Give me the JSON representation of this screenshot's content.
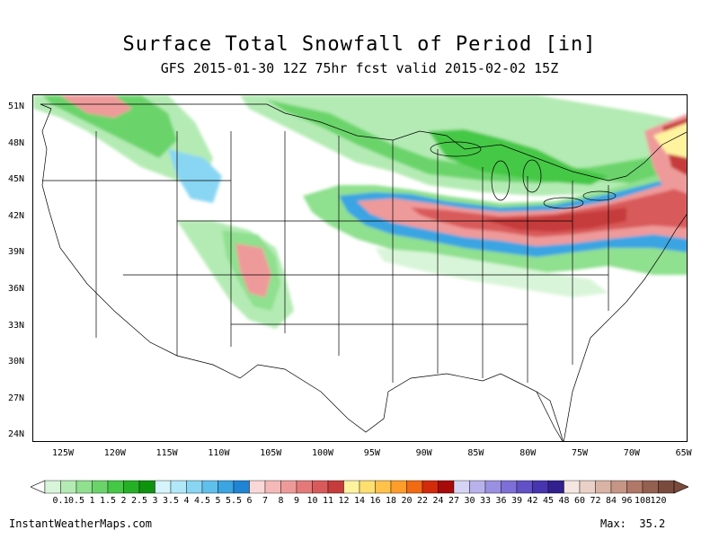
{
  "title": "Surface Total Snowfall of Period [in]",
  "subtitle": "GFS 2015-01-30 12Z 75hr fcst valid 2015-02-02 15Z",
  "lat_ticks": [
    "51N",
    "48N",
    "45N",
    "42N",
    "39N",
    "36N",
    "33N",
    "30N",
    "27N",
    "24N"
  ],
  "lon_ticks": [
    "125W",
    "120W",
    "115W",
    "110W",
    "105W",
    "100W",
    "95W",
    "90W",
    "85W",
    "80W",
    "75W",
    "70W",
    "65W"
  ],
  "colorbar": {
    "labels": [
      "0.1",
      "0.5",
      "1",
      "1.5",
      "2",
      "2.5",
      "3",
      "3.5",
      "4",
      "4.5",
      "5",
      "5.5",
      "6",
      "7",
      "8",
      "9",
      "10",
      "11",
      "12",
      "14",
      "16",
      "18",
      "20",
      "22",
      "24",
      "27",
      "30",
      "33",
      "36",
      "39",
      "42",
      "45",
      "48",
      "60",
      "72",
      "84",
      "96",
      "108",
      "120"
    ],
    "colors": [
      "#d9f5d9",
      "#b4ebb4",
      "#8fe08f",
      "#6ad46a",
      "#45c845",
      "#25b025",
      "#0f930f",
      "#d6f4fb",
      "#b0e8f8",
      "#88d6f3",
      "#5fc0ec",
      "#3ba4e2",
      "#1f84d4",
      "#fbd8d8",
      "#f6b9b9",
      "#ef9a9a",
      "#e57979",
      "#d95a5a",
      "#c63b3b",
      "#fff3a0",
      "#ffdf70",
      "#ffc24a",
      "#ff9d2a",
      "#f26a12",
      "#d42a0c",
      "#a80a0a",
      "#d6d4f4",
      "#b8b2ec",
      "#9a90e2",
      "#7d6fd6",
      "#6150c6",
      "#4735b0",
      "#33208f",
      "#f6e6e1",
      "#ead0c6",
      "#d9b3a5",
      "#c69585",
      "#b07868",
      "#946050",
      "#7a4b3c"
    ]
  },
  "footer": {
    "source": "InstantWeatherMaps.com",
    "max_label": "Max:",
    "max_value": "35.2"
  }
}
